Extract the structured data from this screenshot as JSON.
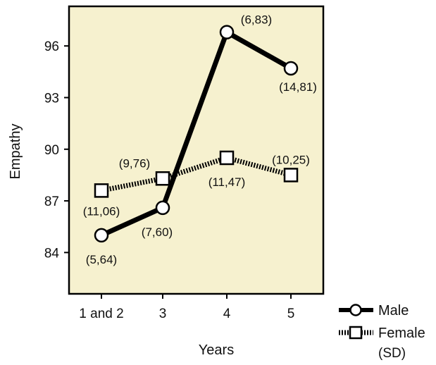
{
  "chart_data": {
    "type": "line",
    "xlabel": "Years",
    "ylabel": "Empathy",
    "categories": [
      "1 and 2",
      "3",
      "4",
      "5"
    ],
    "yticks": [
      84,
      87,
      90,
      93,
      96
    ],
    "ylim": [
      81.6,
      98.3
    ],
    "grid": false,
    "legend_position": "bottom-right, outside plot",
    "legend_note": "(SD)",
    "colors": {
      "plot_background": "#f6f1cf",
      "series": "#000000",
      "marker_fill": "#ffffff"
    },
    "series": [
      {
        "name": "Male",
        "style": "solid",
        "marker": "circle",
        "values": [
          85.0,
          86.6,
          96.8,
          94.7
        ],
        "sd_labels": [
          "(5,64)",
          "(7,60)",
          "(6,83)",
          "(14,81)"
        ]
      },
      {
        "name": "Female",
        "style": "dotted",
        "marker": "square",
        "values": [
          87.6,
          88.3,
          89.5,
          88.5
        ],
        "sd_labels": [
          "(11,06)",
          "(9,76)",
          "(11,47)",
          "(10,25)"
        ]
      }
    ]
  }
}
